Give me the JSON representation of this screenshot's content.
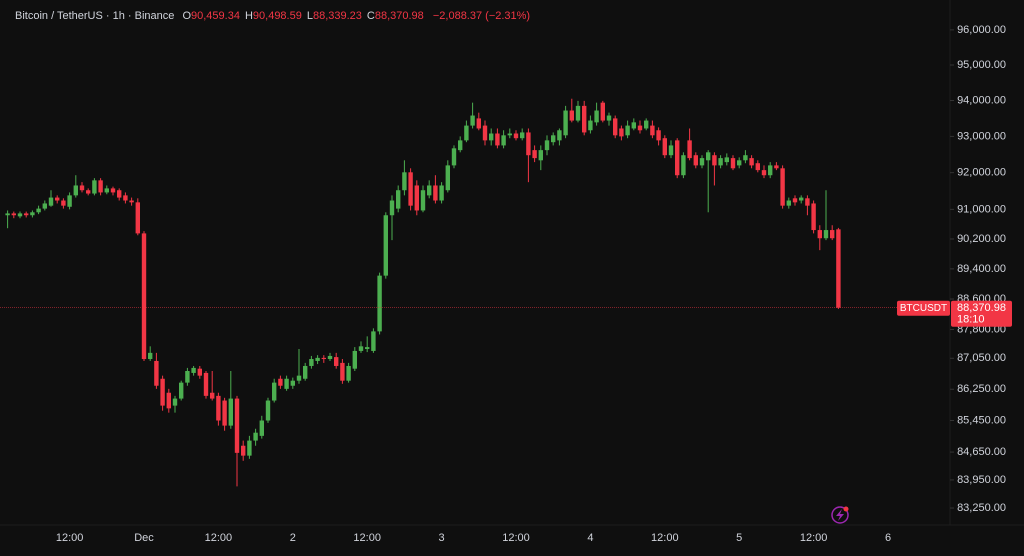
{
  "chart_data": {
    "type": "candlestick",
    "title": "Bitcoin / TetherUS · 1h · Binance",
    "ohlc_legend": [
      {
        "label": "O",
        "value": "90,459.34"
      },
      {
        "label": "H",
        "value": "90,498.59"
      },
      {
        "label": "L",
        "value": "88,339.23"
      },
      {
        "label": "C",
        "value": "88,370.98"
      }
    ],
    "change": "−2,088.37 (−2.31%)",
    "up_color": "#4caf50",
    "down_color": "#f23645",
    "log_scale": true,
    "grid": false,
    "ylim": [
      82830,
      96570
    ],
    "yticks": [
      {
        "value": 96000,
        "label": "96,000.00"
      },
      {
        "value": 95000,
        "label": "95,000.00"
      },
      {
        "value": 94000,
        "label": "94,000.00"
      },
      {
        "value": 93000,
        "label": "93,000.00"
      },
      {
        "value": 92000,
        "label": "92,000.00"
      },
      {
        "value": 91000,
        "label": "91,000.00"
      },
      {
        "value": 90200,
        "label": "90,200.00"
      },
      {
        "value": 89400,
        "label": "89,400.00"
      },
      {
        "value": 88600,
        "label": "88,600.00"
      },
      {
        "value": 87800,
        "label": "87,800.00"
      },
      {
        "value": 87050,
        "label": "87,050.00"
      },
      {
        "value": 86250,
        "label": "86,250.00"
      },
      {
        "value": 85450,
        "label": "85,450.00"
      },
      {
        "value": 84650,
        "label": "84,650.00"
      },
      {
        "value": 83950,
        "label": "83,950.00"
      },
      {
        "value": 83250,
        "label": "83,250.00"
      }
    ],
    "last_price": {
      "value": 88370.98,
      "label": "88,370.98"
    },
    "symbol_tag": "BTCUSDT",
    "countdown": "18:10",
    "categories": [
      null,
      null,
      null,
      null,
      null,
      null,
      null,
      null,
      null,
      null,
      "12:00",
      null,
      null,
      null,
      null,
      null,
      null,
      null,
      null,
      null,
      null,
      null,
      "Dec",
      null,
      null,
      null,
      null,
      null,
      null,
      null,
      null,
      null,
      null,
      null,
      "12:00",
      null,
      null,
      null,
      null,
      null,
      null,
      null,
      null,
      null,
      null,
      null,
      "2",
      null,
      null,
      null,
      null,
      null,
      null,
      null,
      null,
      null,
      null,
      null,
      "12:00",
      null,
      null,
      null,
      null,
      null,
      null,
      null,
      null,
      null,
      null,
      null,
      "3",
      null,
      null,
      null,
      null,
      null,
      null,
      null,
      null,
      null,
      null,
      null,
      "12:00",
      null,
      null,
      null,
      null,
      null,
      null,
      null,
      null,
      null,
      null,
      null,
      "4",
      null,
      null,
      null,
      null,
      null,
      null,
      null,
      null,
      null,
      null,
      null,
      "12:00",
      null,
      null,
      null,
      null,
      null,
      null,
      null,
      null,
      null,
      null,
      null,
      "5",
      null,
      null,
      null,
      null,
      null,
      null,
      null,
      null,
      null,
      null,
      null,
      "12:00",
      null,
      null,
      null,
      null,
      null,
      null,
      null,
      null,
      null,
      null,
      null,
      "6"
    ],
    "open": [
      90840,
      90890,
      90810,
      90890,
      90840,
      90920,
      91020,
      91100,
      91320,
      91240,
      91070,
      91380,
      91650,
      91520,
      91430,
      91790,
      91460,
      91570,
      91520,
      91380,
      91240,
      91190,
      90350,
      87030,
      86980,
      86520,
      86160,
      85830,
      86010,
      86420,
      86670,
      86780,
      86670,
      86160,
      86080,
      85960,
      85320,
      86010,
      84810,
      84560,
      84940,
      85060,
      85450,
      85960,
      86520,
      86260,
      86340,
      86470,
      86520,
      86850,
      86980,
      87060,
      87030,
      87080,
      86930,
      86470,
      86780,
      87240,
      87290,
      87240,
      87750,
      89220,
      90840,
      91020,
      91520,
      92010,
      91650,
      90970,
      91380,
      91650,
      91240,
      91520,
      92200,
      92620,
      92890,
      93300,
      93500,
      93300,
      92890,
      93080,
      92750,
      93030,
      93080,
      92950,
      93110,
      92620,
      92340,
      92620,
      92840,
      92890,
      93030,
      93720,
      93440,
      93850,
      93170,
      93390,
      93940,
      93440,
      93500,
      93220,
      93030,
      93220,
      93300,
      93220,
      93300,
      93170,
      92950,
      92480,
      92890,
      91930,
      92890,
      92480,
      92200,
      92340,
      92480,
      92200,
      92290,
      92400,
      92200,
      92340,
      92400,
      92260,
      92070,
      91930,
      92200,
      92120,
      91100,
      91300,
      91240,
      91300,
      91160,
      90440,
      90220,
      90440,
      90459.34,
      null,
      null,
      null,
      null,
      null,
      null,
      null,
      null
    ],
    "high": [
      90970,
      90940,
      90940,
      90940,
      90970,
      91100,
      91240,
      91520,
      91380,
      91300,
      91460,
      91930,
      91740,
      91570,
      91850,
      91850,
      91650,
      91620,
      91570,
      91460,
      91320,
      91300,
      90410,
      87360,
      87190,
      86600,
      86260,
      86080,
      86470,
      86800,
      86850,
      86850,
      86720,
      86720,
      86160,
      86030,
      86720,
      86080,
      84940,
      85060,
      85240,
      85570,
      86030,
      86520,
      86600,
      86600,
      86550,
      87290,
      86930,
      87110,
      87130,
      87130,
      87190,
      87190,
      87030,
      86930,
      87340,
      87490,
      87620,
      87830,
      89300,
      90920,
      91380,
      91650,
      92340,
      92120,
      91790,
      91650,
      91790,
      91930,
      91740,
      92340,
      92750,
      93000,
      93440,
      93940,
      93660,
      93440,
      93220,
      93220,
      93170,
      93220,
      93170,
      93220,
      93220,
      92750,
      92750,
      93030,
      93110,
      93220,
      93850,
      94050,
      93990,
      93990,
      93580,
      93940,
      93990,
      93660,
      93580,
      93300,
      93440,
      93500,
      93440,
      93500,
      93440,
      93250,
      93030,
      92890,
      92950,
      92560,
      93220,
      92560,
      92480,
      92620,
      92560,
      92480,
      92530,
      92480,
      92420,
      92620,
      92480,
      92340,
      92200,
      92290,
      92290,
      92200,
      91320,
      91380,
      91380,
      91380,
      91240,
      90570,
      91520,
      90570,
      90498.59,
      null,
      null,
      null,
      null,
      null,
      null,
      null,
      null
    ],
    "low": [
      90490,
      90760,
      90760,
      90780,
      90780,
      90870,
      90970,
      91070,
      91160,
      91020,
      91000,
      91320,
      91460,
      91380,
      91380,
      91380,
      91410,
      91380,
      91240,
      91160,
      91100,
      90300,
      86980,
      86980,
      86260,
      85700,
      85650,
      85650,
      85960,
      86340,
      86600,
      86520,
      86010,
      85960,
      85320,
      85190,
      85240,
      83790,
      84430,
      84480,
      84810,
      84990,
      85390,
      85910,
      86260,
      86210,
      86260,
      86390,
      86470,
      86780,
      86900,
      86930,
      86980,
      86780,
      86390,
      86420,
      86720,
      87190,
      87210,
      87190,
      87670,
      89140,
      90170,
      90920,
      91380,
      90970,
      90840,
      90920,
      91300,
      91160,
      91160,
      91460,
      92120,
      92560,
      92840,
      93220,
      93170,
      92750,
      92750,
      92670,
      92670,
      92950,
      92890,
      92890,
      91740,
      92290,
      92070,
      92480,
      92750,
      92750,
      92950,
      93390,
      93390,
      93030,
      93080,
      93300,
      93390,
      93300,
      92950,
      92890,
      92950,
      93170,
      93080,
      93170,
      92950,
      92750,
      92400,
      92400,
      91850,
      91850,
      92340,
      92120,
      92120,
      90920,
      91650,
      92120,
      92200,
      92070,
      92120,
      92260,
      92120,
      92010,
      91850,
      91850,
      92070,
      91020,
      91020,
      91100,
      91160,
      90840,
      90350,
      89900,
      90170,
      90170,
      88339.23,
      null,
      null,
      null,
      null,
      null,
      null,
      null,
      null
    ],
    "close": [
      90890,
      90840,
      90890,
      90840,
      90920,
      91020,
      91160,
      91320,
      91240,
      91100,
      91380,
      91650,
      91520,
      91430,
      91790,
      91460,
      91570,
      91460,
      91320,
      91240,
      91190,
      90350,
      87030,
      87190,
      86340,
      85830,
      85760,
      86010,
      86420,
      86720,
      86800,
      86600,
      86080,
      86010,
      85450,
      85320,
      86010,
      84630,
      84560,
      84940,
      85140,
      85450,
      85960,
      86420,
      86340,
      86520,
      86470,
      86600,
      86850,
      87030,
      87060,
      87030,
      87110,
      86850,
      86470,
      86850,
      87240,
      87360,
      87340,
      87750,
      89220,
      90840,
      91240,
      91520,
      92010,
      91100,
      90970,
      91520,
      91650,
      91240,
      91650,
      92200,
      92670,
      92890,
      93300,
      93580,
      93220,
      92890,
      93080,
      92750,
      93030,
      93080,
      92950,
      93110,
      92480,
      92400,
      92620,
      92890,
      93030,
      93170,
      93720,
      93440,
      93850,
      93110,
      93440,
      93720,
      93440,
      93580,
      93030,
      93000,
      93300,
      93390,
      93170,
      93440,
      93030,
      92890,
      92480,
      92750,
      91930,
      92480,
      92400,
      92200,
      92400,
      92560,
      92200,
      92400,
      92420,
      92120,
      92340,
      92480,
      92200,
      92070,
      91930,
      92200,
      92120,
      91100,
      91240,
      91190,
      91320,
      91100,
      90440,
      90220,
      90440,
      90220,
      88370.98,
      null,
      null,
      null,
      null,
      null,
      null,
      null,
      null
    ]
  }
}
